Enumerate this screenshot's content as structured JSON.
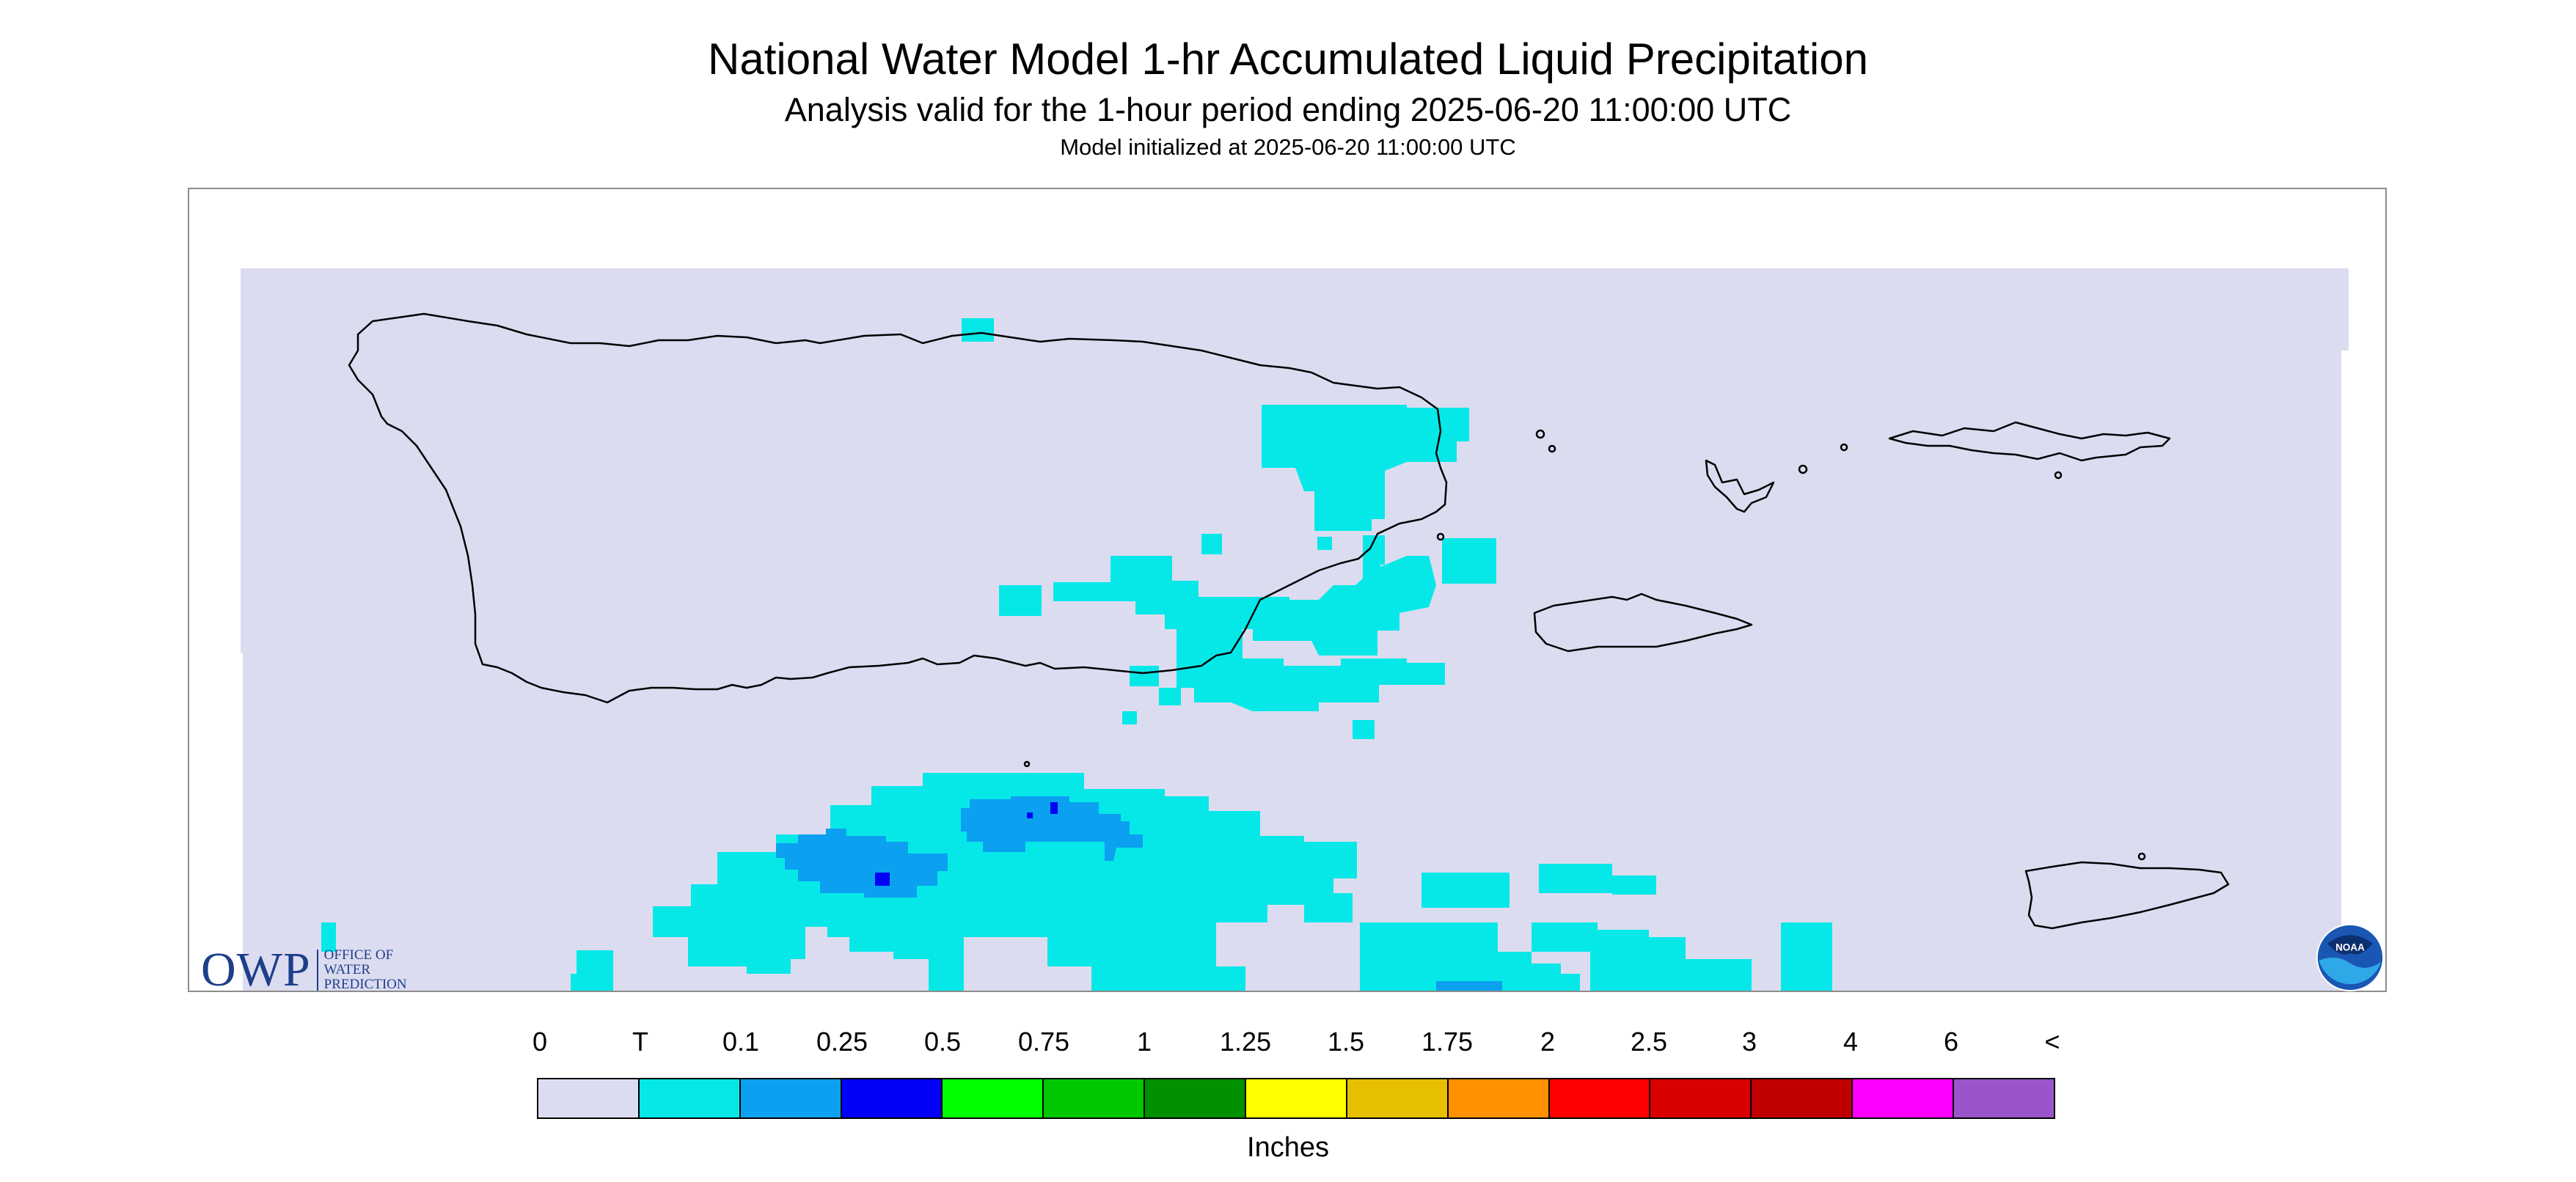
{
  "header": {
    "title": "National Water Model 1-hr Accumulated Liquid Precipitation",
    "subtitle": "Analysis valid for the 1-hour period ending 2025-06-20 11:00:00 UTC",
    "init": "Model initialized at 2025-06-20 11:00:00 UTC"
  },
  "logos": {
    "owp_mark": "OWP",
    "owp_line1": "OFFICE OF",
    "owp_line2": "WATER",
    "owp_line3": "PREDICTION",
    "noaa": "NOAA"
  },
  "legend": {
    "units": "Inches",
    "labels": [
      "0",
      "T",
      "0.1",
      "0.25",
      "0.5",
      "0.75",
      "1",
      "1.25",
      "1.5",
      "1.75",
      "2",
      "2.5",
      "3",
      "4",
      "6",
      "<"
    ],
    "colors": [
      "#dcdcf0",
      "#06e8e8",
      "#0ba0f0",
      "#0000f6",
      "#00ff00",
      "#00c800",
      "#009000",
      "#ffff00",
      "#e6c000",
      "#ff9000",
      "#ff0000",
      "#d80000",
      "#c00000",
      "#ff00ff",
      "#9955c9"
    ]
  },
  "colors": {
    "background": "#dcdcf0",
    "trace": "#06e8e8",
    "light": "#0ba0f0",
    "moderate": "#0000f6",
    "coast": "#000000"
  }
}
